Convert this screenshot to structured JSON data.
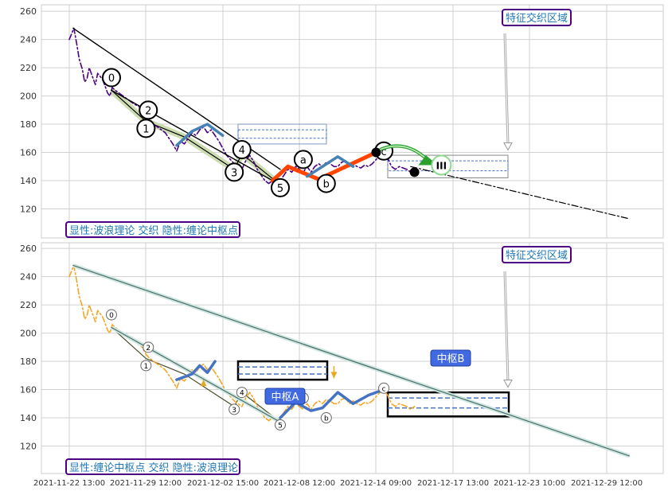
{
  "chart_data": [
    {
      "type": "line",
      "panel": "top",
      "ylim": [
        108,
        264
      ],
      "ytick_labels": [
        "120",
        "140",
        "160",
        "180",
        "200",
        "220",
        "240",
        "260"
      ],
      "grid": true,
      "caption": "显性:波浪理论 交织 隐性:缠论中枢点",
      "callout": "特征交织区域",
      "series": [
        {
          "role": "price",
          "style": "dash-dot",
          "color": "#4b0082",
          "points": [
            [
              0,
              240
            ],
            [
              0.3,
              244
            ],
            [
              0.6,
              248
            ],
            [
              1,
              236
            ],
            [
              1.3,
              226
            ],
            [
              1.7,
              219
            ],
            [
              2,
              210
            ],
            [
              2.3,
              212
            ],
            [
              2.6,
              220
            ],
            [
              3,
              214
            ],
            [
              3.4,
              208
            ],
            [
              3.7,
              216
            ],
            [
              4,
              214
            ],
            [
              4.3,
              212
            ],
            [
              4.6,
              208
            ],
            [
              5,
              202
            ],
            [
              5.3,
              200
            ],
            [
              5.6,
              206
            ],
            [
              6,
              204
            ],
            [
              6.5,
              202
            ],
            [
              7,
              200
            ],
            [
              7.5,
              198
            ],
            [
              8,
              196
            ],
            [
              8.5,
              194
            ],
            [
              9,
              193
            ],
            [
              9.5,
              190
            ],
            [
              10,
              185
            ],
            [
              10.5,
              182
            ],
            [
              11,
              180
            ],
            [
              11.5,
              178
            ],
            [
              12,
              176
            ],
            [
              12.5,
              174
            ],
            [
              13,
              170
            ],
            [
              13.5,
              166
            ],
            [
              14,
              161
            ],
            [
              14.5,
              168
            ],
            [
              15,
              166
            ],
            [
              15.5,
              170
            ],
            [
              16,
              174
            ],
            [
              16.5,
              172
            ],
            [
              17,
              176
            ],
            [
              17.5,
              178
            ],
            [
              18,
              174
            ],
            [
              18.5,
              176
            ],
            [
              19,
              172
            ],
            [
              19.5,
              168
            ],
            [
              20,
              163
            ],
            [
              20.5,
              158
            ],
            [
              21,
              155
            ],
            [
              21.5,
              152
            ],
            [
              22,
              150
            ],
            [
              22.5,
              148
            ],
            [
              23,
              154
            ],
            [
              23.5,
              158
            ],
            [
              24,
              154
            ],
            [
              24.5,
              148
            ],
            [
              25,
              144
            ],
            [
              25.5,
              140
            ],
            [
              26,
              138
            ],
            [
              26.5,
              140
            ],
            [
              27,
              137
            ],
            [
              27.5,
              140
            ],
            [
              28,
              144
            ],
            [
              28.5,
              148
            ],
            [
              29,
              146
            ],
            [
              29.5,
              150
            ],
            [
              30,
              148
            ],
            [
              30.5,
              146
            ],
            [
              31,
              150
            ],
            [
              31.5,
              146
            ],
            [
              32,
              150
            ],
            [
              32.5,
              152
            ],
            [
              33,
              150
            ],
            [
              33.5,
              153
            ],
            [
              34,
              152
            ],
            [
              34.5,
              150
            ],
            [
              35,
              150
            ],
            [
              35.5,
              153
            ],
            [
              36,
              154
            ],
            [
              36.5,
              150
            ],
            [
              37,
              152
            ],
            [
              37.5,
              150
            ],
            [
              38,
              149
            ],
            [
              38.5,
              151
            ],
            [
              39,
              150
            ],
            [
              39.5,
              152
            ],
            [
              40,
              155
            ],
            [
              40.5,
              158
            ],
            [
              41,
              160
            ],
            [
              41.5,
              156
            ],
            [
              42,
              150
            ],
            [
              42.5,
              148
            ],
            [
              43,
              150
            ],
            [
              43.5,
              149
            ],
            [
              44,
              148
            ],
            [
              44.5,
              146
            ],
            [
              45,
              148
            ]
          ]
        },
        {
          "role": "wave-line",
          "color": "#000000",
          "points": [
            [
              0.5,
              248
            ],
            [
              27.5,
              148
            ]
          ]
        },
        {
          "role": "wave-line",
          "color": "#000000",
          "points": [
            [
              5.5,
              204
            ],
            [
              27.5,
              137
            ]
          ]
        },
        {
          "role": "forecast",
          "style": "dash-dot",
          "color": "#000000",
          "points": [
            [
              44.5,
              150
            ],
            [
              73,
              113
            ]
          ]
        },
        {
          "role": "center-move",
          "color": "#ff4500",
          "points": [
            [
              26.5,
              140
            ],
            [
              28.5,
              150
            ],
            [
              32.5,
              141
            ],
            [
              40,
              160
            ]
          ]
        },
        {
          "role": "center-move",
          "color": "#4682b4",
          "points": [
            [
              14,
              165
            ],
            [
              16,
              175
            ],
            [
              18,
              180
            ],
            [
              20,
              172
            ]
          ]
        },
        {
          "role": "center-move",
          "color": "#4682b4",
          "points": [
            [
              31,
              143
            ],
            [
              33,
              150
            ],
            [
              35,
              157
            ],
            [
              37,
              150
            ]
          ]
        }
      ],
      "wave_labels": [
        {
          "text": "0",
          "x": 5.5,
          "y": 213
        },
        {
          "text": "1",
          "x": 10,
          "y": 177
        },
        {
          "text": "2",
          "x": 10.3,
          "y": 190
        },
        {
          "text": "3",
          "x": 21.5,
          "y": 146
        },
        {
          "text": "4",
          "x": 22.5,
          "y": 162
        },
        {
          "text": "5",
          "x": 27.5,
          "y": 135
        },
        {
          "text": "a",
          "x": 30.5,
          "y": 155
        },
        {
          "text": "b",
          "x": 33.5,
          "y": 138
        },
        {
          "text": "c",
          "x": 41,
          "y": 161
        },
        {
          "text": "III",
          "x": 48.5,
          "y": 151
        }
      ]
    },
    {
      "type": "line",
      "panel": "bottom",
      "ylim": [
        108,
        264
      ],
      "ytick_labels": [
        "120",
        "140",
        "160",
        "180",
        "200",
        "220",
        "240",
        "260"
      ],
      "xtick_labels": [
        "2021-11-22 13:00",
        "2021-11-29 12:00",
        "2021-12-02 15:00",
        "2021-12-08 12:00",
        "2021-12-14 09:00",
        "2021-12-17 13:00",
        "2021-12-23 10:00",
        "2021-12-29 12:00"
      ],
      "grid": true,
      "caption": "显性:缠论中枢点 交织 隐性:波浪理论",
      "callout": "特征交织区域",
      "series": [
        {
          "role": "price",
          "style": "dash-dot",
          "color": "#f4a623",
          "points": [
            [
              0,
              240
            ],
            [
              0.3,
              244
            ],
            [
              0.6,
              248
            ],
            [
              1,
              236
            ],
            [
              1.3,
              226
            ],
            [
              1.7,
              219
            ],
            [
              2,
              210
            ],
            [
              2.3,
              212
            ],
            [
              2.6,
              220
            ],
            [
              3,
              214
            ],
            [
              3.4,
              208
            ],
            [
              3.7,
              216
            ],
            [
              4,
              214
            ],
            [
              4.3,
              212
            ],
            [
              4.6,
              208
            ],
            [
              5,
              202
            ],
            [
              5.3,
              200
            ],
            [
              5.6,
              206
            ],
            [
              6,
              204
            ],
            [
              6.5,
              202
            ],
            [
              7,
              200
            ],
            [
              7.5,
              198
            ],
            [
              8,
              196
            ],
            [
              8.5,
              194
            ],
            [
              9,
              193
            ],
            [
              9.5,
              190
            ],
            [
              10,
              185
            ],
            [
              10.5,
              182
            ],
            [
              11,
              180
            ],
            [
              11.5,
              178
            ],
            [
              12,
              176
            ],
            [
              12.5,
              174
            ],
            [
              13,
              170
            ],
            [
              13.5,
              166
            ],
            [
              14,
              161
            ],
            [
              14.5,
              168
            ],
            [
              15,
              166
            ],
            [
              15.5,
              170
            ],
            [
              16,
              174
            ],
            [
              16.5,
              172
            ],
            [
              17,
              176
            ],
            [
              17.5,
              178
            ],
            [
              18,
              174
            ],
            [
              18.5,
              176
            ],
            [
              19,
              172
            ],
            [
              19.5,
              168
            ],
            [
              20,
              163
            ],
            [
              20.5,
              158
            ],
            [
              21,
              155
            ],
            [
              21.5,
              152
            ],
            [
              22,
              150
            ],
            [
              22.5,
              148
            ],
            [
              23,
              154
            ],
            [
              23.5,
              158
            ],
            [
              24,
              154
            ],
            [
              24.5,
              148
            ],
            [
              25,
              144
            ],
            [
              25.5,
              140
            ],
            [
              26,
              138
            ],
            [
              26.5,
              140
            ],
            [
              27,
              137
            ],
            [
              27.5,
              140
            ],
            [
              28,
              144
            ],
            [
              28.5,
              148
            ],
            [
              29,
              146
            ],
            [
              29.5,
              150
            ],
            [
              30,
              148
            ],
            [
              30.5,
              146
            ],
            [
              31,
              150
            ],
            [
              31.5,
              146
            ],
            [
              32,
              150
            ],
            [
              32.5,
              152
            ],
            [
              33,
              150
            ],
            [
              33.5,
              153
            ],
            [
              34,
              152
            ],
            [
              34.5,
              150
            ],
            [
              35,
              150
            ],
            [
              35.5,
              153
            ],
            [
              36,
              154
            ],
            [
              36.5,
              150
            ],
            [
              37,
              152
            ],
            [
              37.5,
              150
            ],
            [
              38,
              149
            ],
            [
              38.5,
              151
            ],
            [
              39,
              150
            ],
            [
              39.5,
              152
            ],
            [
              40,
              155
            ],
            [
              40.5,
              158
            ],
            [
              41,
              160
            ],
            [
              41.5,
              156
            ],
            [
              42,
              150
            ],
            [
              42.5,
              148
            ],
            [
              43,
              150
            ],
            [
              43.5,
              149
            ],
            [
              44,
              148
            ],
            [
              44.5,
              146
            ],
            [
              45,
              148
            ]
          ]
        },
        {
          "role": "trend",
          "color": "#4a6e6a",
          "points": [
            [
              0.5,
              248
            ],
            [
              73,
              113
            ]
          ]
        },
        {
          "role": "trend",
          "color": "#4a6e6a",
          "points": [
            [
              5.5,
              204
            ],
            [
              27.5,
              137
            ]
          ]
        },
        {
          "role": "center-move",
          "color": "#4472c4",
          "points": [
            [
              14,
              167
            ],
            [
              16,
              171
            ],
            [
              17,
              177
            ],
            [
              18,
              172
            ],
            [
              19,
              180
            ]
          ]
        },
        {
          "role": "center-move",
          "color": "#4472c4",
          "points": [
            [
              27.5,
              140
            ],
            [
              29.5,
              151
            ],
            [
              31.5,
              145
            ],
            [
              33,
              147
            ],
            [
              35,
              158
            ],
            [
              37,
              150
            ],
            [
              39,
              156
            ],
            [
              41,
              160
            ]
          ]
        }
      ],
      "center_labels": [
        {
          "text": "中枢A",
          "x": 17.5,
          "y": 167
        },
        {
          "text": "中枢B",
          "x": 34.5,
          "y": 168
        }
      ],
      "wave_labels": [
        {
          "text": "0",
          "x": 5.5,
          "y": 213
        },
        {
          "text": "1",
          "x": 10,
          "y": 177
        },
        {
          "text": "2",
          "x": 10.3,
          "y": 190
        },
        {
          "text": "3",
          "x": 21.5,
          "y": 146
        },
        {
          "text": "4",
          "x": 22.5,
          "y": 158
        },
        {
          "text": "5",
          "x": 27.5,
          "y": 135
        },
        {
          "text": "a",
          "x": 30.5,
          "y": 154
        },
        {
          "text": "b",
          "x": 33.5,
          "y": 140
        },
        {
          "text": "c",
          "x": 41,
          "y": 161
        }
      ]
    }
  ]
}
